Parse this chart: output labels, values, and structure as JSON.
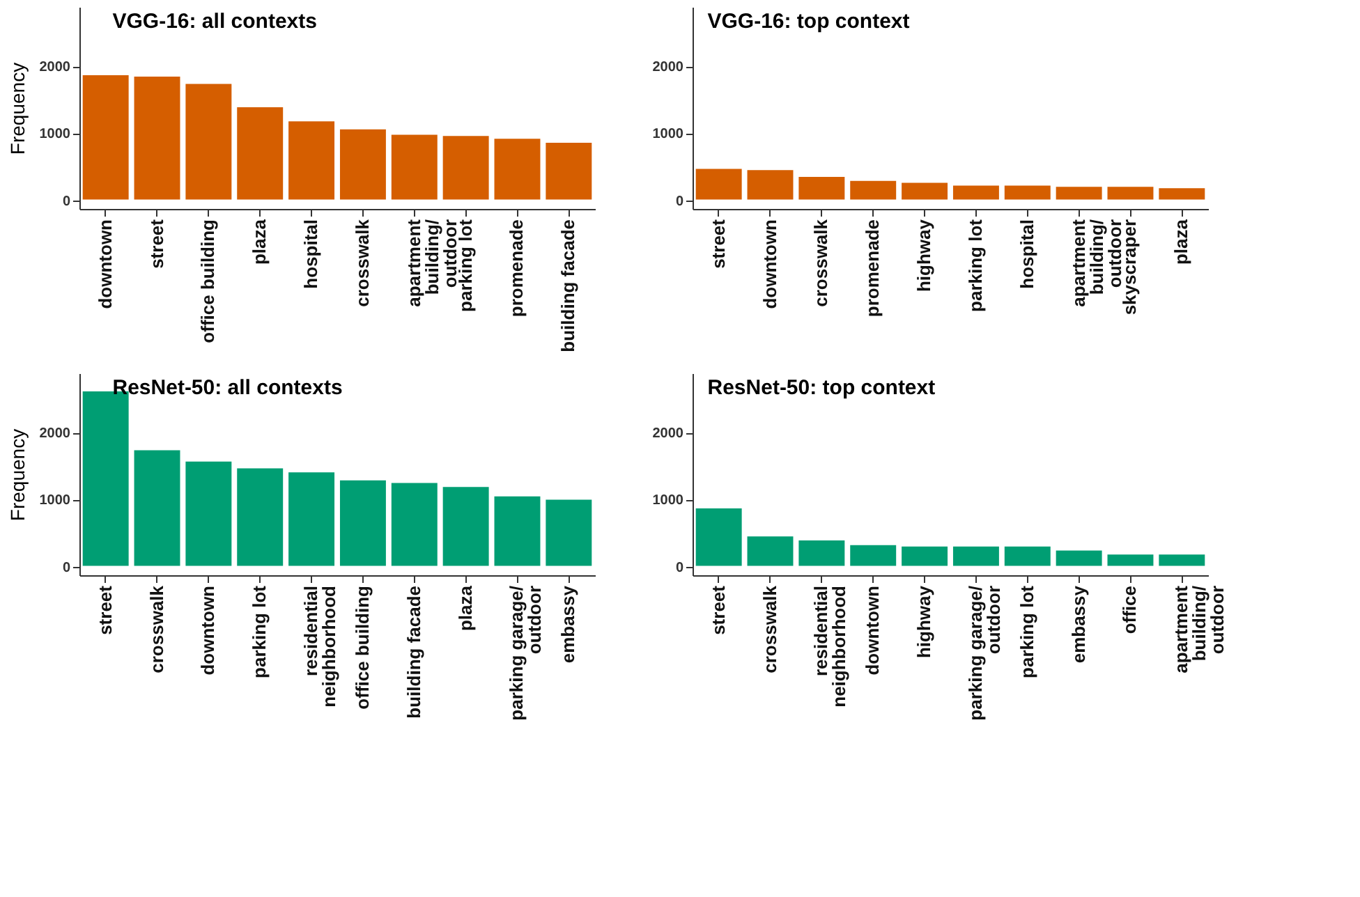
{
  "chart_data": [
    {
      "type": "bar",
      "title": "VGG-16: all contexts",
      "ylabel": "Frequency",
      "categories": [
        "downtown",
        "street",
        "office building",
        "plaza",
        "hospital",
        "crosswalk",
        "apartment\nbuilding/\noutdoor",
        "parking lot",
        "promenade",
        "building facade"
      ],
      "values": [
        1880,
        1860,
        1750,
        1400,
        1190,
        1070,
        990,
        970,
        930,
        870
      ],
      "color": "#d55e00",
      "ylim": [
        -130,
        2890
      ],
      "yticks": [
        0,
        1000,
        2000
      ],
      "grid": false
    },
    {
      "type": "bar",
      "title": "VGG-16: top context",
      "categories": [
        "street",
        "downtown",
        "crosswalk",
        "promenade",
        "highway",
        "parking lot",
        "hospital",
        "apartment\nbuilding/\noutdoor",
        "skyscraper",
        "plaza"
      ],
      "values": [
        480,
        460,
        360,
        300,
        270,
        230,
        230,
        210,
        210,
        190
      ],
      "color": "#d55e00",
      "ylim": [
        -130,
        2890
      ],
      "yticks": [
        0,
        1000,
        2000
      ],
      "grid": false
    },
    {
      "type": "bar",
      "title": "ResNet-50: all contexts",
      "ylabel": "Frequency",
      "categories": [
        "street",
        "crosswalk",
        "downtown",
        "parking lot",
        "residential\nneighborhood",
        "office building",
        "building facade",
        "plaza",
        "parking garage/\noutdoor",
        "embassy"
      ],
      "values": [
        2630,
        1750,
        1580,
        1480,
        1420,
        1300,
        1260,
        1200,
        1060,
        1010
      ],
      "color": "#009e73",
      "ylim": [
        -130,
        2890
      ],
      "yticks": [
        0,
        1000,
        2000
      ],
      "grid": false
    },
    {
      "type": "bar",
      "title": "ResNet-50: top context",
      "categories": [
        "street",
        "crosswalk",
        "residential\nneighborhood",
        "downtown",
        "highway",
        "parking garage/\noutdoor",
        "parking lot",
        "embassy",
        "office",
        "apartment\nbuilding/\noutdoor"
      ],
      "values": [
        880,
        460,
        400,
        330,
        310,
        310,
        310,
        250,
        190,
        190
      ],
      "color": "#009e73",
      "ylim": [
        -130,
        2890
      ],
      "yticks": [
        0,
        1000,
        2000
      ],
      "grid": false
    }
  ]
}
